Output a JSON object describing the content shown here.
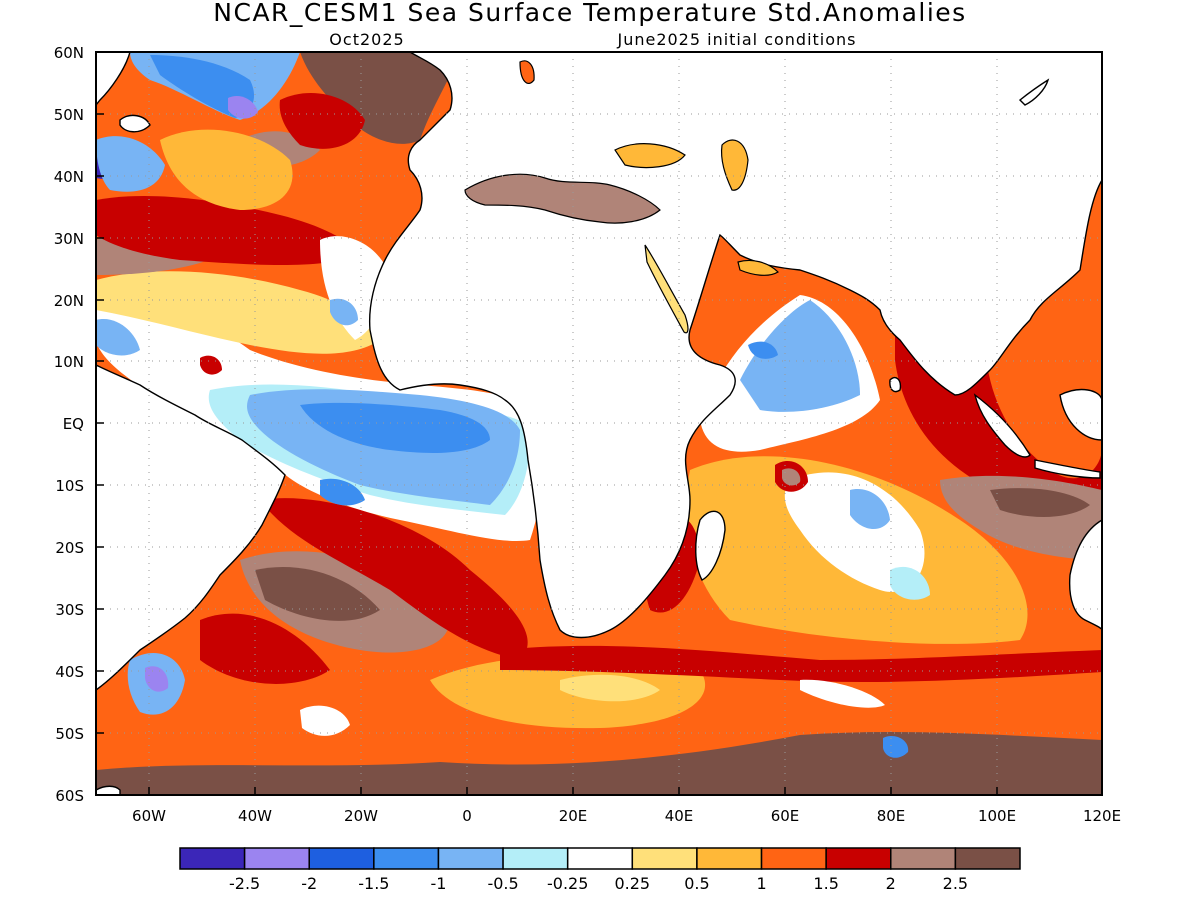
{
  "header": {
    "title": "NCAR_CESM1 Sea Surface Temperature Std.Anomalies",
    "valid_month": "Oct2025",
    "init_label": "June2025 initial conditions"
  },
  "map": {
    "lat_labels": [
      "60N",
      "50N",
      "40N",
      "30N",
      "20N",
      "10N",
      "EQ",
      "10S",
      "20S",
      "30S",
      "40S",
      "50S",
      "60S"
    ],
    "lon_labels": [
      "60W",
      "40W",
      "20W",
      "0",
      "20E",
      "40E",
      "60E",
      "80E",
      "100E",
      "120E"
    ],
    "lat_range": [
      -60,
      60
    ],
    "lon_range": [
      -70,
      120
    ],
    "grid": "dotted"
  },
  "colorbar": {
    "labels": [
      "-2.5",
      "-2",
      "-1.5",
      "-1",
      "-0.5",
      "-0.25",
      "0.25",
      "0.5",
      "1",
      "1.5",
      "2",
      "2.5"
    ],
    "colors": [
      "#3b26b8",
      "#9b84f0",
      "#1e5fe0",
      "#3c8ef0",
      "#78b4f4",
      "#b4eef8",
      "#ffffff",
      "#ffe07a",
      "#ffb838",
      "#ff6414",
      "#c80000",
      "#b08478",
      "#7a5046"
    ]
  },
  "colors": {
    "land": "#ffffff",
    "coastline": "#000000",
    "ocean_base": "#ff6414"
  }
}
